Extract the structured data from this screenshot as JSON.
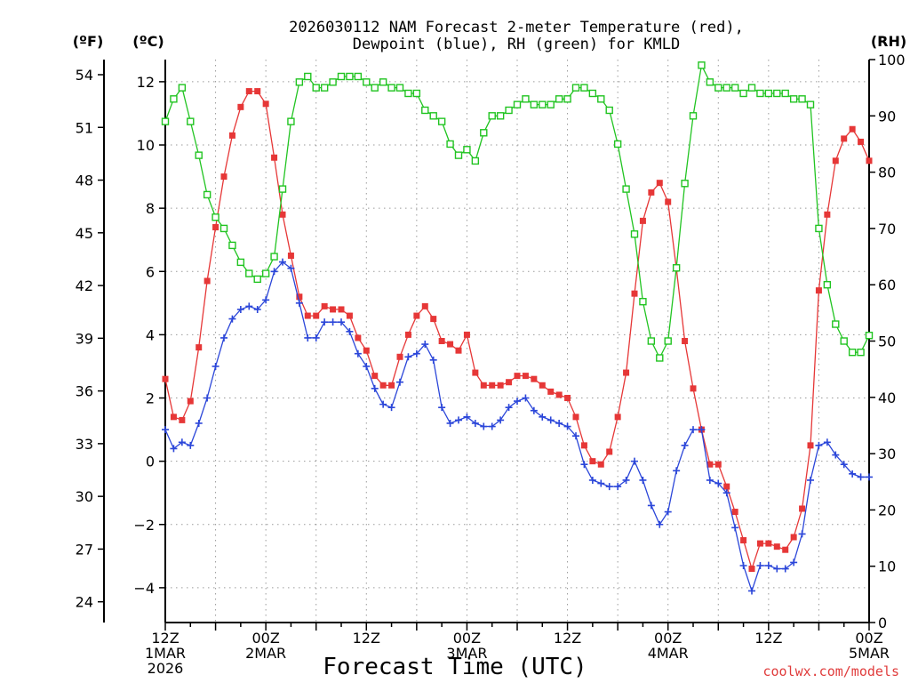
{
  "title_line1": "2026030112 NAM Forecast 2-meter Temperature (red),",
  "title_line2": "Dewpoint (blue), RH (green) for KMLD",
  "units": {
    "fahrenheit": "(ºF)",
    "celsius": "(ºC)",
    "rh": "(RH)"
  },
  "xlabel": "Forecast Time (UTC)",
  "credit": "coolwx.com/models",
  "colors": {
    "temperature": "#e63737",
    "dewpoint": "#2b46d9",
    "rh": "#21c421",
    "axis": "#000000",
    "credit": "#e03c3c"
  },
  "chart_data": {
    "type": "line",
    "title": "2026030112 NAM Forecast 2-meter Temperature (red), Dewpoint (blue), RH (green) for KMLD",
    "xlabel": "Forecast Time (UTC)",
    "x_unit": "forecast hour",
    "xlim": [
      0,
      84
    ],
    "x_ticks": [
      {
        "hour": 0,
        "lines": [
          "12Z",
          "1MAR",
          "2026"
        ]
      },
      {
        "hour": 12,
        "lines": [
          "00Z",
          "2MAR"
        ]
      },
      {
        "hour": 24,
        "lines": [
          "12Z"
        ]
      },
      {
        "hour": 36,
        "lines": [
          "00Z",
          "3MAR"
        ]
      },
      {
        "hour": 48,
        "lines": [
          "12Z"
        ]
      },
      {
        "hour": 60,
        "lines": [
          "00Z",
          "4MAR"
        ]
      },
      {
        "hour": 72,
        "lines": [
          "12Z"
        ]
      },
      {
        "hour": 84,
        "lines": [
          "00Z",
          "5MAR"
        ]
      }
    ],
    "y_left_celsius": {
      "label": "(ºC)",
      "lim": [
        -5.1,
        12.7
      ],
      "ticks": [
        -4,
        -2,
        0,
        2,
        4,
        6,
        8,
        10,
        12
      ]
    },
    "y_left_fahrenheit": {
      "label": "(ºF)",
      "ticks": [
        24,
        27,
        30,
        33,
        36,
        39,
        42,
        45,
        48,
        51,
        54
      ]
    },
    "y_right_rh": {
      "label": "(RH)",
      "lim": [
        0,
        100
      ],
      "ticks": [
        0,
        10,
        20,
        30,
        40,
        50,
        60,
        70,
        80,
        90,
        100
      ]
    },
    "series": [
      {
        "name": "2-meter Temperature",
        "axis": "celsius",
        "color": "#e63737",
        "marker": "filled-square",
        "x": [
          0,
          1,
          2,
          3,
          4,
          5,
          6,
          7,
          8,
          9,
          10,
          11,
          12,
          13,
          14,
          15,
          16,
          17,
          18,
          19,
          20,
          21,
          22,
          23,
          24,
          25,
          26,
          27,
          28,
          29,
          30,
          31,
          32,
          33,
          34,
          35,
          36,
          37,
          38,
          39,
          40,
          41,
          42,
          43,
          44,
          45,
          46,
          47,
          48,
          49,
          50,
          51,
          52,
          53,
          54,
          55,
          56,
          57,
          58,
          59,
          60,
          61,
          62,
          63,
          64,
          65,
          66,
          67,
          68,
          69,
          70,
          71,
          72,
          73,
          74,
          75,
          76,
          77,
          78,
          79,
          80,
          81,
          82,
          83,
          84
        ],
        "values": [
          2.6,
          1.4,
          1.3,
          1.9,
          3.6,
          5.7,
          7.4,
          9.0,
          10.3,
          11.2,
          11.7,
          11.7,
          11.3,
          9.6,
          7.8,
          6.5,
          5.2,
          4.6,
          4.6,
          4.9,
          4.8,
          4.8,
          4.6,
          3.9,
          3.5,
          2.7,
          2.4,
          2.4,
          3.3,
          4.0,
          4.6,
          4.9,
          4.5,
          3.8,
          3.7,
          3.5,
          4.0,
          2.8,
          2.4,
          2.4,
          2.4,
          2.5,
          2.7,
          2.7,
          2.6,
          2.4,
          2.2,
          2.1,
          2.0,
          1.4,
          0.5,
          0.0,
          -0.1,
          0.3,
          1.4,
          2.8,
          5.3,
          7.6,
          8.5,
          8.8,
          8.2,
          6.1,
          3.8,
          2.3,
          1.0,
          -0.1,
          -0.1,
          -0.8,
          -1.6,
          -2.5,
          -3.4,
          -2.6,
          -2.6,
          -2.7,
          -2.8,
          -2.4,
          -1.5,
          0.5,
          5.4,
          7.8,
          9.5,
          10.2,
          10.5,
          10.1,
          9.5
        ]
      },
      {
        "name": "Dewpoint",
        "axis": "celsius",
        "color": "#2b46d9",
        "marker": "plus",
        "x": [
          0,
          1,
          2,
          3,
          4,
          5,
          6,
          7,
          8,
          9,
          10,
          11,
          12,
          13,
          14,
          15,
          16,
          17,
          18,
          19,
          20,
          21,
          22,
          23,
          24,
          25,
          26,
          27,
          28,
          29,
          30,
          31,
          32,
          33,
          34,
          35,
          36,
          37,
          38,
          39,
          40,
          41,
          42,
          43,
          44,
          45,
          46,
          47,
          48,
          49,
          50,
          51,
          52,
          53,
          54,
          55,
          56,
          57,
          58,
          59,
          60,
          61,
          62,
          63,
          64,
          65,
          66,
          67,
          68,
          69,
          70,
          71,
          72,
          73,
          74,
          75,
          76,
          77,
          78,
          79,
          80,
          81,
          82,
          83,
          84
        ],
        "values": [
          1.0,
          0.4,
          0.6,
          0.5,
          1.2,
          2.0,
          3.0,
          3.9,
          4.5,
          4.8,
          4.9,
          4.8,
          5.1,
          6.0,
          6.3,
          6.1,
          5.0,
          3.9,
          3.9,
          4.4,
          4.4,
          4.4,
          4.1,
          3.4,
          3.0,
          2.3,
          1.8,
          1.7,
          2.5,
          3.3,
          3.4,
          3.7,
          3.2,
          1.7,
          1.2,
          1.3,
          1.4,
          1.2,
          1.1,
          1.1,
          1.3,
          1.7,
          1.9,
          2.0,
          1.6,
          1.4,
          1.3,
          1.2,
          1.1,
          0.8,
          -0.1,
          -0.6,
          -0.7,
          -0.8,
          -0.8,
          -0.6,
          0.0,
          -0.6,
          -1.4,
          -2.0,
          -1.6,
          -0.3,
          0.5,
          1.0,
          1.0,
          -0.6,
          -0.7,
          -1.0,
          -2.1,
          -3.3,
          -4.1,
          -3.3,
          -3.3,
          -3.4,
          -3.4,
          -3.2,
          -2.3,
          -0.6,
          0.5,
          0.6,
          0.2,
          -0.1,
          -0.4,
          -0.5,
          -0.5
        ]
      },
      {
        "name": "Relative Humidity",
        "axis": "rh",
        "color": "#21c421",
        "marker": "open-square",
        "x": [
          0,
          1,
          2,
          3,
          4,
          5,
          6,
          7,
          8,
          9,
          10,
          11,
          12,
          13,
          14,
          15,
          16,
          17,
          18,
          19,
          20,
          21,
          22,
          23,
          24,
          25,
          26,
          27,
          28,
          29,
          30,
          31,
          32,
          33,
          34,
          35,
          36,
          37,
          38,
          39,
          40,
          41,
          42,
          43,
          44,
          45,
          46,
          47,
          48,
          49,
          50,
          51,
          52,
          53,
          54,
          55,
          56,
          57,
          58,
          59,
          60,
          61,
          62,
          63,
          64,
          65,
          66,
          67,
          68,
          69,
          70,
          71,
          72,
          73,
          74,
          75,
          76,
          77,
          78,
          79,
          80,
          81,
          82,
          83,
          84
        ],
        "values": [
          89,
          93,
          95,
          89,
          83,
          76,
          72,
          70,
          67,
          64,
          62,
          61,
          62,
          65,
          77,
          89,
          96,
          97,
          95,
          95,
          96,
          97,
          97,
          97,
          96,
          95,
          96,
          95,
          95,
          94,
          94,
          91,
          90,
          89,
          85,
          83,
          84,
          82,
          87,
          90,
          90,
          91,
          92,
          93,
          92,
          92,
          92,
          93,
          93,
          95,
          95,
          94,
          93,
          91,
          85,
          77,
          69,
          57,
          50,
          47,
          50,
          63,
          78,
          90,
          99,
          96,
          95,
          95,
          95,
          94,
          95,
          94,
          94,
          94,
          94,
          93,
          93,
          92,
          70,
          60,
          53,
          50,
          48,
          48,
          51
        ]
      }
    ]
  }
}
